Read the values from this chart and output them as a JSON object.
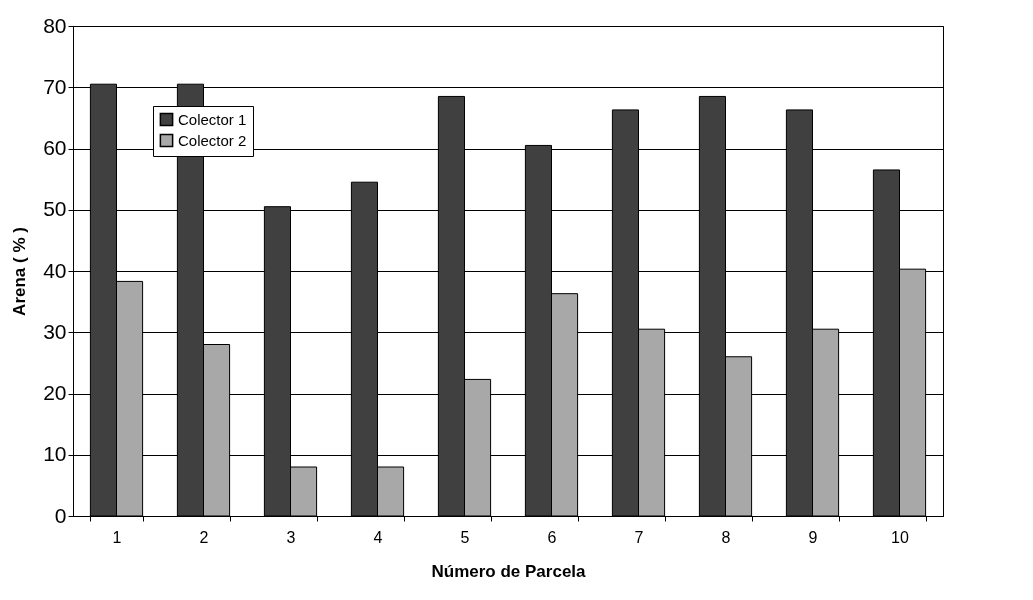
{
  "chart_data": {
    "type": "bar",
    "xlabel": "Número de Parcela",
    "ylabel": "Arena ( % )",
    "categories": [
      "1",
      "2",
      "3",
      "4",
      "5",
      "6",
      "7",
      "8",
      "9",
      "10"
    ],
    "series": [
      {
        "name": "Colector 1",
        "color": "#404040",
        "values": [
          70.5,
          70.5,
          50.5,
          54.5,
          68.5,
          60.5,
          66.3,
          68.5,
          66.3,
          56.5
        ]
      },
      {
        "name": "Colector 2",
        "color": "#a8a8a8",
        "values": [
          38.3,
          28,
          8,
          8,
          22.3,
          36.3,
          30.5,
          26,
          30.5,
          40.3
        ]
      }
    ],
    "ylim": [
      0,
      80
    ],
    "yticks": [
      0,
      10,
      20,
      30,
      40,
      50,
      60,
      70,
      80
    ],
    "grid": "y",
    "legend": "top left"
  }
}
